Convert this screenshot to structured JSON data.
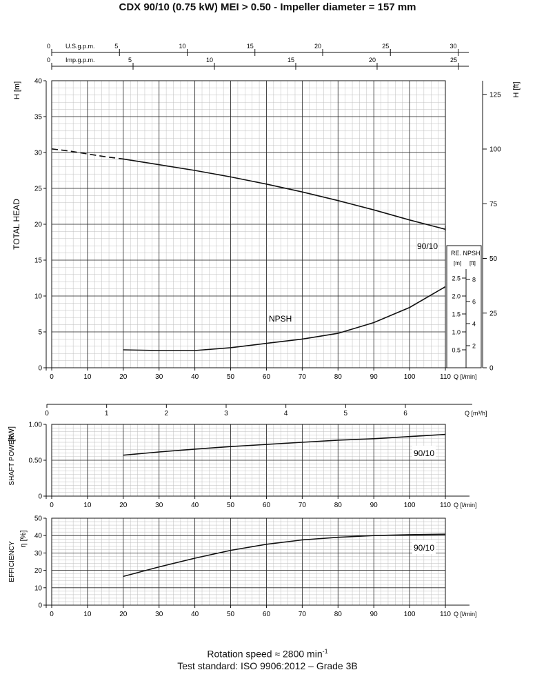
{
  "title": "CDX 90/10 (0.75 kW) MEI > 0.50 - Impeller diameter = 157 mm",
  "footer": {
    "rotation_prefix": "Rotation speed ≈ 2800 min",
    "rotation_exp": "-1",
    "standard": "Test standard: ISO 9906:2012 – Grade 3B"
  },
  "chart_data": [
    {
      "type": "line",
      "name": "head",
      "ylabel": "TOTAL HEAD",
      "xlim": [
        0,
        110
      ],
      "ylim": [
        0,
        40
      ],
      "x_ticks": [
        0,
        10,
        20,
        30,
        40,
        50,
        60,
        70,
        80,
        90,
        100,
        110
      ],
      "y_ticks": [
        0,
        5,
        10,
        15,
        20,
        25,
        30,
        35,
        40
      ],
      "x_unit": "Q [l/min]",
      "y_unit": "H [m]",
      "grid": true,
      "right_axis": {
        "unit": "H [ft]",
        "ticks": [
          0,
          25,
          50,
          75,
          100,
          125
        ]
      },
      "top_axes": [
        {
          "unit": "U.S.g.p.m.",
          "ticks": [
            0,
            5,
            10,
            15,
            20,
            25,
            30
          ]
        },
        {
          "unit": "Imp.g.p.m.",
          "ticks": [
            0,
            5,
            10,
            15,
            20,
            25
          ]
        }
      ],
      "series": [
        {
          "name": "90/10",
          "style": "dashed",
          "x": [
            0,
            5,
            10,
            15,
            20
          ],
          "y": [
            30.5,
            30.2,
            29.8,
            29.4,
            29.1
          ]
        },
        {
          "name": "90/10",
          "style": "solid",
          "x": [
            20,
            30,
            40,
            50,
            60,
            70,
            80,
            90,
            100,
            110
          ],
          "y": [
            29.1,
            28.3,
            27.5,
            26.6,
            25.6,
            24.5,
            23.3,
            22.0,
            20.6,
            19.3
          ]
        },
        {
          "name": "NPSH",
          "style": "solid",
          "x": [
            20,
            30,
            40,
            50,
            60,
            70,
            80,
            90,
            100,
            110
          ],
          "y": [
            2.5,
            2.4,
            2.4,
            2.8,
            3.4,
            4.0,
            4.8,
            6.3,
            8.4,
            11.3
          ]
        }
      ],
      "annotations": [
        "90/10",
        "NPSH"
      ],
      "npsh_inset": {
        "title": "RE. NPSH",
        "unit_m": "[m]",
        "unit_ft": "[ft]",
        "m_ticks": [
          "2.5",
          "2.0",
          "1.5",
          "1.0",
          "0.5"
        ],
        "ft_ticks": [
          "8",
          "6",
          "4",
          "2"
        ]
      }
    },
    {
      "type": "line",
      "name": "shaft-power",
      "ylabel": "SHAFT POWER",
      "xlim": [
        0,
        110
      ],
      "ylim": [
        0,
        1.0
      ],
      "x_ticks": [
        0,
        10,
        20,
        30,
        40,
        50,
        60,
        70,
        80,
        90,
        100,
        110
      ],
      "y_ticks": [
        "0",
        "0.50",
        "1.00"
      ],
      "x_unit": "Q [l/min]",
      "y_unit": "[kW]",
      "grid": true,
      "top_axis": {
        "unit": "Q [m³/h]",
        "ticks": [
          0,
          1,
          2,
          3,
          4,
          5,
          6
        ]
      },
      "series": [
        {
          "name": "90/10",
          "x": [
            20,
            30,
            40,
            50,
            60,
            70,
            80,
            90,
            100,
            110
          ],
          "y": [
            0.57,
            0.615,
            0.655,
            0.69,
            0.72,
            0.75,
            0.78,
            0.8,
            0.83,
            0.86
          ]
        }
      ],
      "annotations": [
        "90/10"
      ]
    },
    {
      "type": "line",
      "name": "efficiency",
      "ylabel": "EFFICIENCY",
      "xlim": [
        0,
        110
      ],
      "ylim": [
        0,
        50
      ],
      "x_ticks": [
        0,
        10,
        20,
        30,
        40,
        50,
        60,
        70,
        80,
        90,
        100,
        110
      ],
      "y_ticks": [
        0,
        10,
        20,
        30,
        40,
        50
      ],
      "x_unit": "Q [l/min]",
      "y_unit": "η [%]",
      "grid": true,
      "series": [
        {
          "name": "90/10",
          "x": [
            20,
            30,
            40,
            50,
            60,
            70,
            80,
            90,
            100,
            110
          ],
          "y": [
            16.5,
            22.0,
            27.0,
            31.5,
            35.0,
            37.5,
            39.0,
            40.0,
            40.5,
            40.8
          ]
        }
      ],
      "annotations": [
        "90/10"
      ]
    }
  ]
}
